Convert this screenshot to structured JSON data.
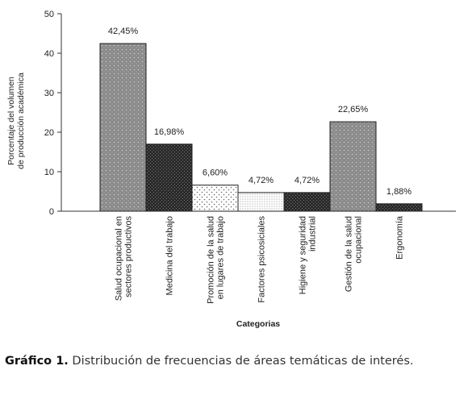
{
  "chart_data": {
    "type": "bar",
    "categories": [
      [
        "Salud ocupacional en",
        "sectores productivos"
      ],
      [
        "Medicina del trabajo"
      ],
      [
        "Promoción de la salud",
        "en lugares de trabajo"
      ],
      [
        "Factores psicosiciales"
      ],
      [
        "Higiene y seguridad",
        "industrial"
      ],
      [
        "Gestión de la salud",
        "ocupacional"
      ],
      [
        "Ergonomía"
      ]
    ],
    "values": [
      42.45,
      16.98,
      6.6,
      4.72,
      4.72,
      22.65,
      1.88
    ],
    "data_labels": [
      "42,45%",
      "16,98%",
      "6,60%",
      "4,72%",
      "4,72%",
      "22,65%",
      "1,88%"
    ],
    "bar_patterns": [
      "dots-gray",
      "dark-check",
      "light-dots",
      "fine-dots",
      "dark-check",
      "dots-gray",
      "dark-check"
    ],
    "ylabel": [
      "Porcentaje del volumen",
      "de producción académica"
    ],
    "xlabel": "Categorias",
    "ylim": [
      0,
      50
    ],
    "yticks": [
      0,
      10,
      20,
      30,
      40,
      50
    ],
    "grid": false,
    "legend": "none"
  },
  "caption": {
    "label": "Gráfico 1.",
    "text": " Distribución de frecuencias de áreas temáticas de interés."
  }
}
